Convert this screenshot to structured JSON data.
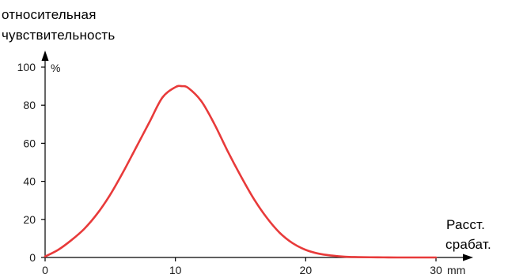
{
  "chart_data": {
    "type": "line",
    "title": "",
    "ylabel_lines": [
      "относительная",
      "чувствительность"
    ],
    "y_unit": "%",
    "xlabel_lines": [
      "Расст.",
      "срабат."
    ],
    "x_unit": "mm",
    "x_ticks": [
      0,
      10,
      20,
      30
    ],
    "y_ticks": [
      0,
      20,
      40,
      60,
      80,
      100
    ],
    "xlim": [
      0,
      30
    ],
    "ylim": [
      0,
      100
    ],
    "grid": false,
    "colors": {
      "line": "#e83a3a",
      "axis": "#000000"
    },
    "series": [
      {
        "x": [
          0,
          1,
          2,
          3,
          4,
          5,
          6,
          7,
          8,
          9,
          10,
          10.5,
          11,
          12,
          13,
          14,
          15,
          16,
          17,
          18,
          19,
          20,
          21,
          22,
          23,
          24,
          25,
          26,
          27,
          28,
          29,
          30
        ],
        "values": [
          0.5,
          4,
          9,
          15,
          23,
          33,
          45,
          58,
          71,
          84,
          89.5,
          90,
          89,
          82,
          70,
          56,
          43,
          31,
          21,
          13,
          7.5,
          4,
          2,
          1,
          0.4,
          0.2,
          0.1,
          0.05,
          0,
          0,
          0,
          0
        ]
      }
    ]
  }
}
